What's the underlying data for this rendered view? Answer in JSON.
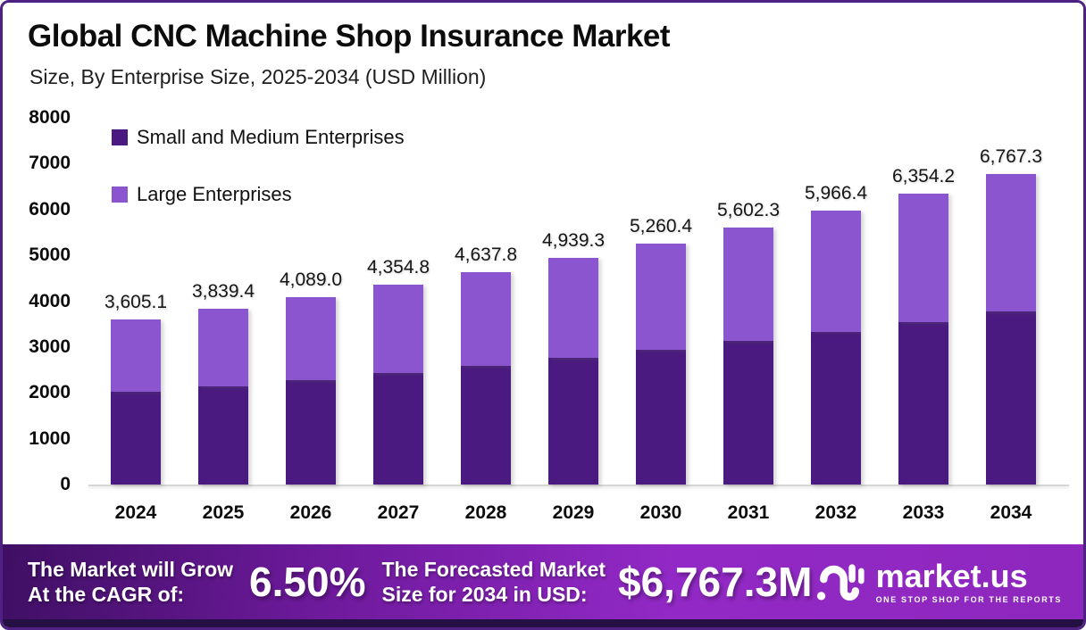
{
  "frame": {
    "border_color": "#4F2183",
    "background": "#ffffff"
  },
  "header": {
    "title": "Global CNC Machine Shop Insurance Market",
    "subtitle": "Size, By Enterprise Size, 2025-2034 (USD Million)"
  },
  "chart_data": {
    "type": "bar",
    "stacked": true,
    "title": "Global CNC Machine Shop Insurance Market Size, By Enterprise Size, 2025-2034 (USD Million)",
    "categories": [
      "2024",
      "2025",
      "2026",
      "2027",
      "2028",
      "2029",
      "2030",
      "2031",
      "2032",
      "2033",
      "2034"
    ],
    "series": [
      {
        "name": "Small and Medium Enterprises",
        "color": "#4A1A80",
        "values": [
          2015,
          2146,
          2286,
          2434,
          2593,
          2761,
          2941,
          3132,
          3335,
          3552,
          3783
        ]
      },
      {
        "name": "Large Enterprises",
        "color": "#8C55D0",
        "values": [
          1590.1,
          1693.4,
          1803.0,
          1920.8,
          2044.8,
          2178.3,
          2319.4,
          2470.3,
          2631.4,
          2802.2,
          2984.3
        ]
      }
    ],
    "totals": [
      3605.1,
      3839.4,
      4089.0,
      4354.8,
      4637.8,
      4939.3,
      5260.4,
      5602.3,
      5966.4,
      6354.2,
      6767.3
    ],
    "total_labels": [
      "3,605.1",
      "3,839.4",
      "4,089.0",
      "4,354.8",
      "4,637.8",
      "4,939.3",
      "5,260.4",
      "5,602.3",
      "5,966.4",
      "6,354.2",
      "6,767.3"
    ],
    "ylim": [
      0,
      8000
    ],
    "yticks": [
      0,
      1000,
      2000,
      3000,
      4000,
      5000,
      6000,
      7000,
      8000
    ],
    "xlabel": "",
    "ylabel": "",
    "grid": false,
    "legend_position": "top-left"
  },
  "footer": {
    "cagr_label_line1": "The Market will Grow",
    "cagr_label_line2": "At the CAGR of:",
    "cagr_value": "6.50%",
    "forecast_label_line1": "The Forecasted Market",
    "forecast_label_line2": "Size for 2034 in USD:",
    "forecast_value": "$6,767.3M",
    "brand_name": "market.us",
    "brand_tagline": "ONE STOP SHOP FOR THE REPORTS",
    "banner_gradient": [
      "#3F0F64",
      "#9229C6"
    ]
  }
}
